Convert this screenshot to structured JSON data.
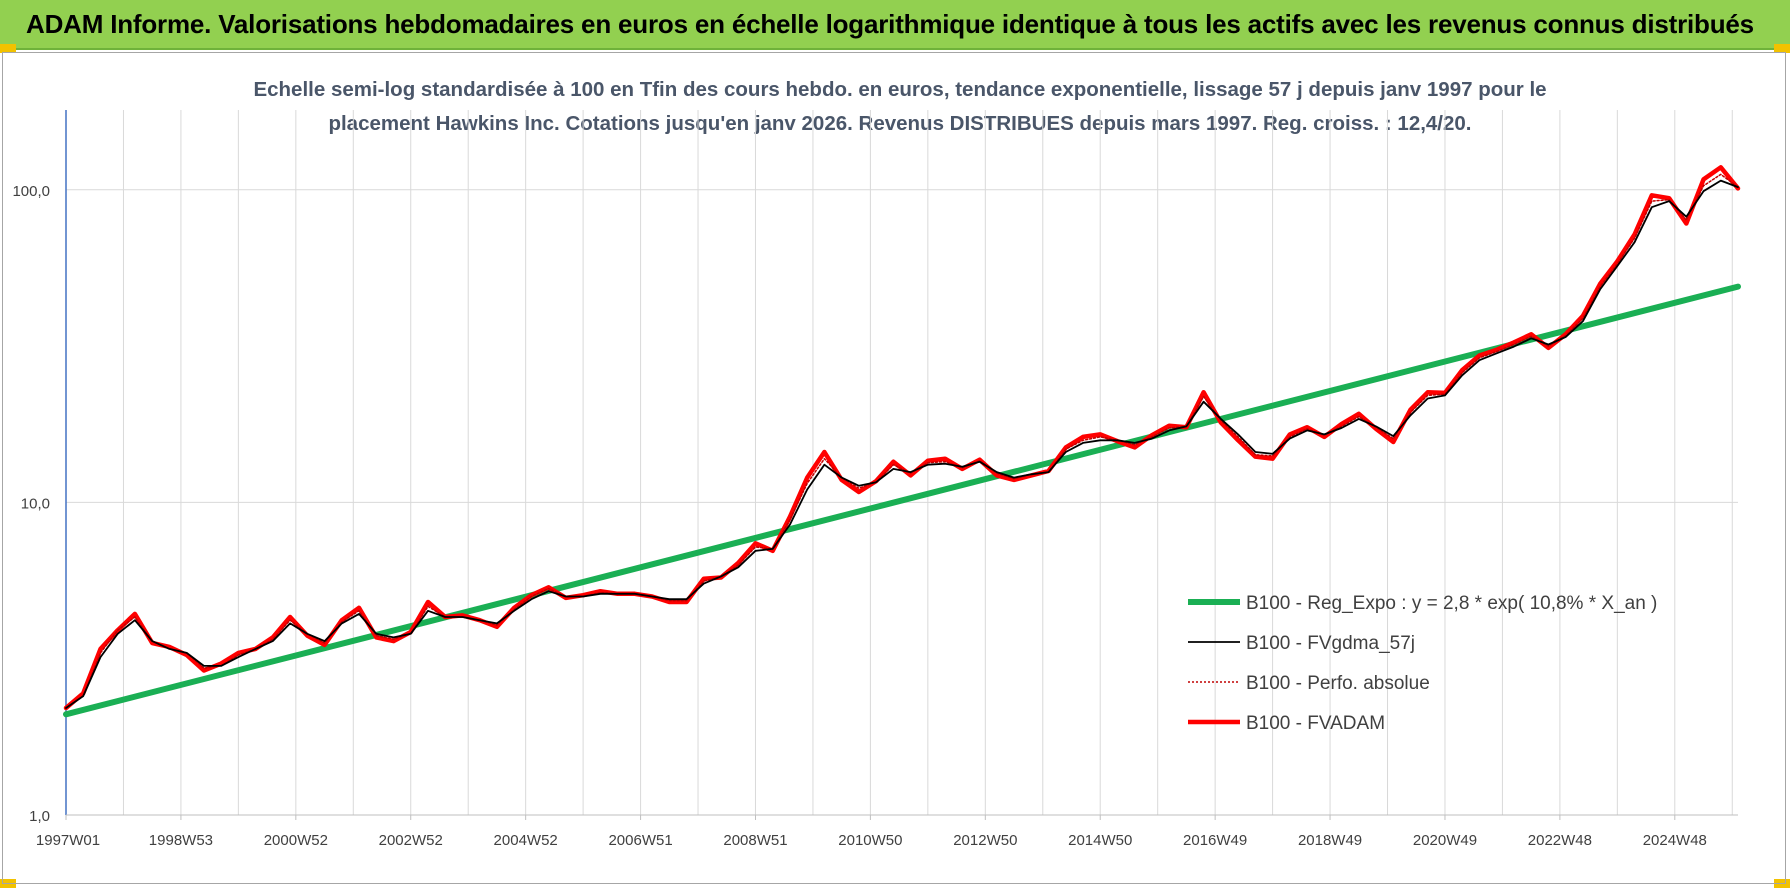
{
  "header": {
    "title": "ADAM Informe. Valorisations hebdomadaires en euros en échelle logarithmique identique à tous les actifs avec les revenus connus distribués"
  },
  "colors": {
    "header_bg": "#92d050",
    "corner": "#f2c200",
    "reg_expo": "#1aaf54",
    "fvgdma": "#000000",
    "perfo": "#c00000",
    "fvadam": "#ff0000",
    "grid": "#d9d9d9",
    "axis": "#4472c4"
  },
  "chart_data": {
    "type": "line",
    "title_lines": [
      "Echelle semi-log standardisée à 100 en Tfin des cours hebdo. en euros, tendance exponentielle, lissage 57 j depuis janv 1997 pour le",
      "placement Hawkins Inc. Cotations jusqu'en janv 2026. Revenus DISTRIBUES depuis mars 1997. Reg. croiss. : 12,4/20."
    ],
    "y_scale": "log",
    "ylim": [
      1,
      180
    ],
    "y_ticks": [
      {
        "value": 1,
        "label": "1,0"
      },
      {
        "value": 10,
        "label": "10,0"
      },
      {
        "value": 100,
        "label": "100,0"
      }
    ],
    "xlim": [
      1997.0,
      2026.1
    ],
    "x_ticks": [
      {
        "value": 1997.0,
        "label": "1997W01"
      },
      {
        "value": 1999.0,
        "label": "1998W53"
      },
      {
        "value": 2001.0,
        "label": "2000W52"
      },
      {
        "value": 2003.0,
        "label": "2002W52"
      },
      {
        "value": 2005.0,
        "label": "2004W52"
      },
      {
        "value": 2007.0,
        "label": "2006W51"
      },
      {
        "value": 2009.0,
        "label": "2008W51"
      },
      {
        "value": 2011.0,
        "label": "2010W50"
      },
      {
        "value": 2013.0,
        "label": "2012W50"
      },
      {
        "value": 2015.0,
        "label": "2014W50"
      },
      {
        "value": 2017.0,
        "label": "2016W49"
      },
      {
        "value": 2019.0,
        "label": "2018W49"
      },
      {
        "value": 2021.0,
        "label": "2020W49"
      },
      {
        "value": 2023.0,
        "label": "2022W48"
      },
      {
        "value": 2025.0,
        "label": "2024W48"
      }
    ],
    "legend_position": "bottom-right",
    "series": [
      {
        "name": "B100 - Reg_Expo : y = 2,8 * exp( 10,8% *  X_an )",
        "key": "reg_expo",
        "x": [
          1997.0,
          2026.1
        ],
        "values": [
          2.1,
          49.0
        ]
      },
      {
        "name": "B100 - FVgdma_57j",
        "key": "fvgdma",
        "x": [
          1997.0,
          1997.3,
          1997.6,
          1997.9,
          1998.2,
          1998.5,
          1998.8,
          1999.1,
          1999.4,
          1999.7,
          2000.0,
          2000.3,
          2000.6,
          2000.9,
          2001.2,
          2001.5,
          2001.8,
          2002.1,
          2002.4,
          2002.7,
          2003.0,
          2003.3,
          2003.6,
          2003.9,
          2004.2,
          2004.5,
          2004.8,
          2005.1,
          2005.4,
          2005.7,
          2006.0,
          2006.3,
          2006.6,
          2006.9,
          2007.2,
          2007.5,
          2007.8,
          2008.1,
          2008.4,
          2008.7,
          2009.0,
          2009.3,
          2009.6,
          2009.9,
          2010.2,
          2010.5,
          2010.8,
          2011.1,
          2011.4,
          2011.7,
          2012.0,
          2012.3,
          2012.6,
          2012.9,
          2013.2,
          2013.5,
          2013.8,
          2014.1,
          2014.4,
          2014.7,
          2015.0,
          2015.3,
          2015.6,
          2015.9,
          2016.2,
          2016.5,
          2016.8,
          2017.1,
          2017.4,
          2017.7,
          2018.0,
          2018.3,
          2018.6,
          2018.9,
          2019.2,
          2019.5,
          2019.8,
          2020.1,
          2020.4,
          2020.7,
          2021.0,
          2021.3,
          2021.6,
          2021.9,
          2022.2,
          2022.5,
          2022.8,
          2023.1,
          2023.4,
          2023.7,
          2024.0,
          2024.3,
          2024.6,
          2024.9,
          2025.2,
          2025.5,
          2025.8,
          2026.1
        ],
        "values": [
          2.2,
          2.4,
          3.2,
          3.8,
          4.2,
          3.6,
          3.4,
          3.3,
          3.0,
          3.0,
          3.2,
          3.4,
          3.6,
          4.1,
          3.8,
          3.6,
          4.1,
          4.4,
          3.8,
          3.7,
          3.8,
          4.5,
          4.3,
          4.3,
          4.2,
          4.1,
          4.5,
          4.9,
          5.2,
          5.0,
          5.0,
          5.1,
          5.1,
          5.1,
          5.0,
          4.9,
          4.9,
          5.5,
          5.8,
          6.2,
          7.0,
          7.1,
          8.5,
          11.0,
          13.2,
          12.0,
          11.3,
          11.6,
          12.8,
          12.5,
          13.2,
          13.3,
          13.0,
          13.5,
          12.5,
          12.0,
          12.3,
          12.5,
          14.5,
          15.5,
          15.8,
          15.8,
          15.5,
          16.0,
          17.0,
          17.5,
          21.0,
          18.5,
          16.5,
          14.5,
          14.3,
          16.0,
          17.0,
          16.5,
          17.3,
          18.5,
          17.5,
          16.3,
          19.0,
          21.5,
          22.0,
          25.5,
          28.5,
          30.0,
          31.5,
          33.5,
          32.0,
          33.8,
          38.0,
          48.0,
          57.0,
          68.0,
          88.0,
          92.0,
          82.0,
          99.0,
          107.0,
          102.0
        ]
      },
      {
        "name": "B100 - Perfo. absolue",
        "key": "perfo",
        "x": [
          1997.0,
          1997.3,
          1997.6,
          1997.9,
          1998.2,
          1998.5,
          1998.8,
          1999.1,
          1999.4,
          1999.7,
          2000.0,
          2000.3,
          2000.6,
          2000.9,
          2001.2,
          2001.5,
          2001.8,
          2002.1,
          2002.4,
          2002.7,
          2003.0,
          2003.3,
          2003.6,
          2003.9,
          2004.2,
          2004.5,
          2004.8,
          2005.1,
          2005.4,
          2005.7,
          2006.0,
          2006.3,
          2006.6,
          2006.9,
          2007.2,
          2007.5,
          2007.8,
          2008.1,
          2008.4,
          2008.7,
          2009.0,
          2009.3,
          2009.6,
          2009.9,
          2010.2,
          2010.5,
          2010.8,
          2011.1,
          2011.4,
          2011.7,
          2012.0,
          2012.3,
          2012.6,
          2012.9,
          2013.2,
          2013.5,
          2013.8,
          2014.1,
          2014.4,
          2014.7,
          2015.0,
          2015.3,
          2015.6,
          2015.9,
          2016.2,
          2016.5,
          2016.8,
          2017.1,
          2017.4,
          2017.7,
          2018.0,
          2018.3,
          2018.6,
          2018.9,
          2019.2,
          2019.5,
          2019.8,
          2020.1,
          2020.4,
          2020.7,
          2021.0,
          2021.3,
          2021.6,
          2021.9,
          2022.2,
          2022.5,
          2022.8,
          2023.1,
          2023.4,
          2023.7,
          2024.0,
          2024.3,
          2024.6,
          2024.9,
          2025.2,
          2025.5,
          2025.8,
          2026.1
        ],
        "values": [
          2.2,
          2.4,
          3.3,
          3.9,
          4.3,
          3.6,
          3.4,
          3.3,
          2.95,
          3.0,
          3.25,
          3.4,
          3.65,
          4.2,
          3.8,
          3.55,
          4.15,
          4.5,
          3.75,
          3.65,
          3.8,
          4.65,
          4.3,
          4.3,
          4.2,
          4.05,
          4.55,
          5.0,
          5.3,
          5.0,
          5.0,
          5.15,
          5.1,
          5.1,
          5.0,
          4.85,
          4.85,
          5.6,
          5.8,
          6.3,
          7.2,
          7.1,
          8.8,
          11.5,
          13.8,
          12.0,
          11.1,
          11.6,
          13.2,
          12.4,
          13.4,
          13.5,
          12.9,
          13.6,
          12.4,
          11.9,
          12.3,
          12.5,
          14.8,
          15.8,
          16.2,
          15.8,
          15.3,
          16.2,
          17.3,
          17.5,
          21.8,
          18.3,
          16.2,
          14.2,
          14.1,
          16.2,
          17.2,
          16.4,
          17.5,
          18.8,
          17.4,
          16.0,
          19.4,
          22.0,
          22.2,
          26.0,
          29.0,
          30.4,
          32.0,
          34.0,
          31.6,
          34.2,
          38.8,
          49.0,
          58.0,
          70.0,
          92.0,
          93.0,
          80.0,
          103.0,
          112.0,
          102.0
        ]
      },
      {
        "name": "B100 - FVADAM",
        "key": "fvadam",
        "x": [
          1997.0,
          1997.3,
          1997.6,
          1997.9,
          1998.2,
          1998.5,
          1998.8,
          1999.1,
          1999.4,
          1999.7,
          2000.0,
          2000.3,
          2000.6,
          2000.9,
          2001.2,
          2001.5,
          2001.8,
          2002.1,
          2002.4,
          2002.7,
          2003.0,
          2003.3,
          2003.6,
          2003.9,
          2004.2,
          2004.5,
          2004.8,
          2005.1,
          2005.4,
          2005.7,
          2006.0,
          2006.3,
          2006.6,
          2006.9,
          2007.2,
          2007.5,
          2007.8,
          2008.1,
          2008.4,
          2008.7,
          2009.0,
          2009.3,
          2009.6,
          2009.9,
          2010.2,
          2010.5,
          2010.8,
          2011.1,
          2011.4,
          2011.7,
          2012.0,
          2012.3,
          2012.6,
          2012.9,
          2013.2,
          2013.5,
          2013.8,
          2014.1,
          2014.4,
          2014.7,
          2015.0,
          2015.3,
          2015.6,
          2015.9,
          2016.2,
          2016.5,
          2016.8,
          2017.1,
          2017.4,
          2017.7,
          2018.0,
          2018.3,
          2018.6,
          2018.9,
          2019.2,
          2019.5,
          2019.8,
          2020.1,
          2020.4,
          2020.7,
          2021.0,
          2021.3,
          2021.6,
          2021.9,
          2022.2,
          2022.5,
          2022.8,
          2023.1,
          2023.4,
          2023.7,
          2024.0,
          2024.3,
          2024.6,
          2024.9,
          2025.2,
          2025.5,
          2025.8,
          2026.1
        ],
        "values": [
          2.2,
          2.45,
          3.4,
          3.9,
          4.4,
          3.55,
          3.45,
          3.25,
          2.9,
          3.05,
          3.3,
          3.4,
          3.7,
          4.3,
          3.75,
          3.5,
          4.2,
          4.6,
          3.7,
          3.6,
          3.85,
          4.8,
          4.3,
          4.35,
          4.2,
          4.0,
          4.6,
          5.05,
          5.35,
          4.95,
          5.05,
          5.2,
          5.1,
          5.1,
          5.0,
          4.8,
          4.8,
          5.7,
          5.75,
          6.4,
          7.4,
          7.0,
          9.0,
          12.0,
          14.5,
          11.8,
          10.8,
          11.7,
          13.5,
          12.2,
          13.6,
          13.8,
          12.8,
          13.7,
          12.2,
          11.8,
          12.2,
          12.6,
          15.0,
          16.2,
          16.5,
          15.7,
          15.0,
          16.4,
          17.6,
          17.4,
          22.5,
          18.0,
          15.8,
          14.0,
          13.8,
          16.5,
          17.4,
          16.2,
          17.8,
          19.2,
          17.2,
          15.6,
          19.8,
          22.5,
          22.4,
          26.5,
          29.5,
          30.8,
          32.5,
          34.5,
          31.2,
          34.5,
          39.5,
          50.0,
          59.0,
          72.0,
          96.0,
          94.0,
          78.0,
          108.0,
          118.0,
          101.0
        ]
      }
    ]
  }
}
